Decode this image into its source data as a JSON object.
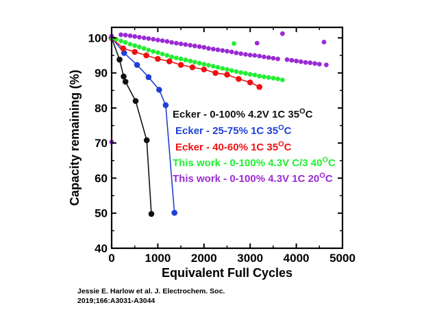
{
  "chart_data": {
    "type": "scatter",
    "xlabel": "Equivalent Full Cycles",
    "ylabel": "Capacity remaining (%)",
    "xlim": [
      0,
      5000
    ],
    "ylim": [
      40,
      103
    ],
    "xticks": [
      0,
      1000,
      2000,
      3000,
      4000,
      5000
    ],
    "yticks": [
      40,
      50,
      60,
      70,
      80,
      90,
      100
    ],
    "grid": false,
    "legend_position": "center-right inside plot",
    "series": [
      {
        "name": "Ecker - 0-100% 4.2V 1C 35",
        "name_sup": "O",
        "name_suffix": "C",
        "color": "#111111",
        "connected": true,
        "x": [
          0,
          170,
          260,
          300,
          520,
          760,
          860
        ],
        "y": [
          100,
          93.8,
          89,
          87.5,
          82,
          70.8,
          49.8
        ]
      },
      {
        "name": "Ecker - 25-75% 1C 35",
        "name_sup": "O",
        "name_suffix": "C",
        "color": "#1f3fd6",
        "connected": true,
        "x": [
          0,
          270,
          550,
          800,
          1030,
          1170,
          1360
        ],
        "y": [
          100,
          95.7,
          92.3,
          88.8,
          85.2,
          80.8,
          50.1
        ]
      },
      {
        "name": "Ecker - 40-60% 1C 35",
        "name_sup": "O",
        "name_suffix": "C",
        "color": "#ee1111",
        "connected": true,
        "x": [
          0,
          250,
          500,
          750,
          1000,
          1250,
          1500,
          1750,
          2000,
          2250,
          2500,
          2750,
          3000,
          3200
        ],
        "y": [
          100,
          97,
          96,
          95,
          94,
          93.3,
          92.3,
          91.6,
          91,
          90,
          89.5,
          88.3,
          87.3,
          86
        ]
      },
      {
        "name": "This work - 0-100% 4.3V C/3 40",
        "name_sup": "O",
        "name_suffix": "C",
        "color": "#22ee33",
        "connected": false,
        "x": [
          0,
          100,
          200,
          300,
          400,
          500,
          600,
          700,
          800,
          900,
          1000,
          1100,
          1200,
          1300,
          1400,
          1500,
          1600,
          1700,
          1800,
          1900,
          2000,
          2100,
          2200,
          2300,
          2400,
          2500,
          2600,
          2650,
          2700,
          2800,
          2900,
          3000,
          3100,
          3200,
          3300,
          3400,
          3500,
          3600,
          3700
        ],
        "y": [
          100,
          99.6,
          99.1,
          98.7,
          98.2,
          97.8,
          97.4,
          97,
          96.5,
          96.1,
          95.8,
          95.4,
          95,
          94.6,
          94.3,
          94,
          93.7,
          93.4,
          93.1,
          92.8,
          92.5,
          92.2,
          91.9,
          91.6,
          91.3,
          91,
          90.7,
          98.4,
          90.4,
          90.1,
          89.9,
          89.6,
          89.4,
          89.1,
          88.9,
          88.7,
          88.5,
          88.3,
          88
        ]
      },
      {
        "name": "This work - 0-100% 4.3V 1C 20",
        "name_sup": "O",
        "name_suffix": "C",
        "color": "#9a2bd2",
        "connected": false,
        "x": [
          0,
          0,
          200,
          300,
          400,
          500,
          600,
          700,
          800,
          900,
          1000,
          1100,
          1200,
          1300,
          1400,
          1500,
          1600,
          1700,
          1800,
          1900,
          2000,
          2100,
          2200,
          2300,
          2400,
          2500,
          2600,
          2700,
          2800,
          2900,
          3000,
          3100,
          3150,
          3200,
          3300,
          3400,
          3500,
          3600,
          3700,
          3800,
          3900,
          4000,
          4100,
          4200,
          4300,
          4400,
          4500,
          4600,
          4650
        ],
        "y": [
          70.3,
          100.5,
          100.9,
          100.8,
          100.6,
          100.4,
          100.2,
          100,
          99.8,
          99.6,
          99.4,
          99.2,
          99,
          98.7,
          98.5,
          98.3,
          98.1,
          97.9,
          97.7,
          97.5,
          97.3,
          97,
          96.8,
          96.6,
          96.4,
          96.2,
          96,
          95.7,
          95.5,
          95.3,
          95.1,
          95,
          98.5,
          94.8,
          94.6,
          94.4,
          94.2,
          94,
          101.2,
          93.8,
          93.6,
          93.4,
          93.2,
          93,
          92.9,
          92.7,
          92.5,
          98.8,
          92.3
        ]
      }
    ]
  },
  "citation": {
    "line1": "Jessie E. Harlow et al. J. Electrochem. Soc.",
    "line2": "2019;166:A3031-A3044"
  }
}
